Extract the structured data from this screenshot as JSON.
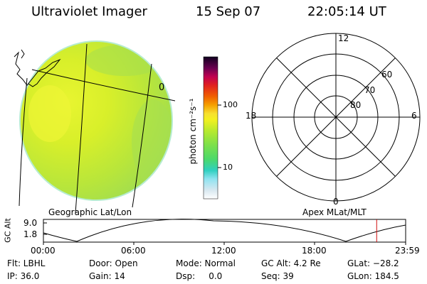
{
  "header": {
    "instrument": "Ultraviolet Imager",
    "date": "15 Sep 07",
    "time": "22:05:14 UT"
  },
  "panels": {
    "geo_label": "Geographic Lat/Lon",
    "apex_label": "Apex MLat/MLT",
    "geo_tick_label": "0"
  },
  "colorbar": {
    "unit_label": "photon cm⁻²s⁻¹",
    "ticks": [
      "100",
      "10"
    ]
  },
  "polar": {
    "mlt_labels": {
      "top": "12",
      "left": "18",
      "right": "6",
      "bottom": "0"
    },
    "lat_labels": [
      "60",
      "70",
      "80"
    ]
  },
  "altitude_plot": {
    "ylabel": "GC Alt",
    "yticks": [
      "9.0",
      "1.8"
    ],
    "xticks": [
      "00:00",
      "06:00",
      "12:00",
      "18:00",
      "23:59"
    ],
    "current_time_fraction": 0.92
  },
  "status": {
    "flt": "Flt: LBHL",
    "ip": "IP: 36.0",
    "door": "Door: Open",
    "gain": "Gain: 14",
    "mode": "Mode: Normal",
    "dsp": "Dsp:     0.0",
    "gc_alt": "GC Alt: 4.2 Re",
    "seq": "Seq: 39",
    "glat": "GLat: −28.2",
    "glon": "GLon: 184.5"
  }
}
